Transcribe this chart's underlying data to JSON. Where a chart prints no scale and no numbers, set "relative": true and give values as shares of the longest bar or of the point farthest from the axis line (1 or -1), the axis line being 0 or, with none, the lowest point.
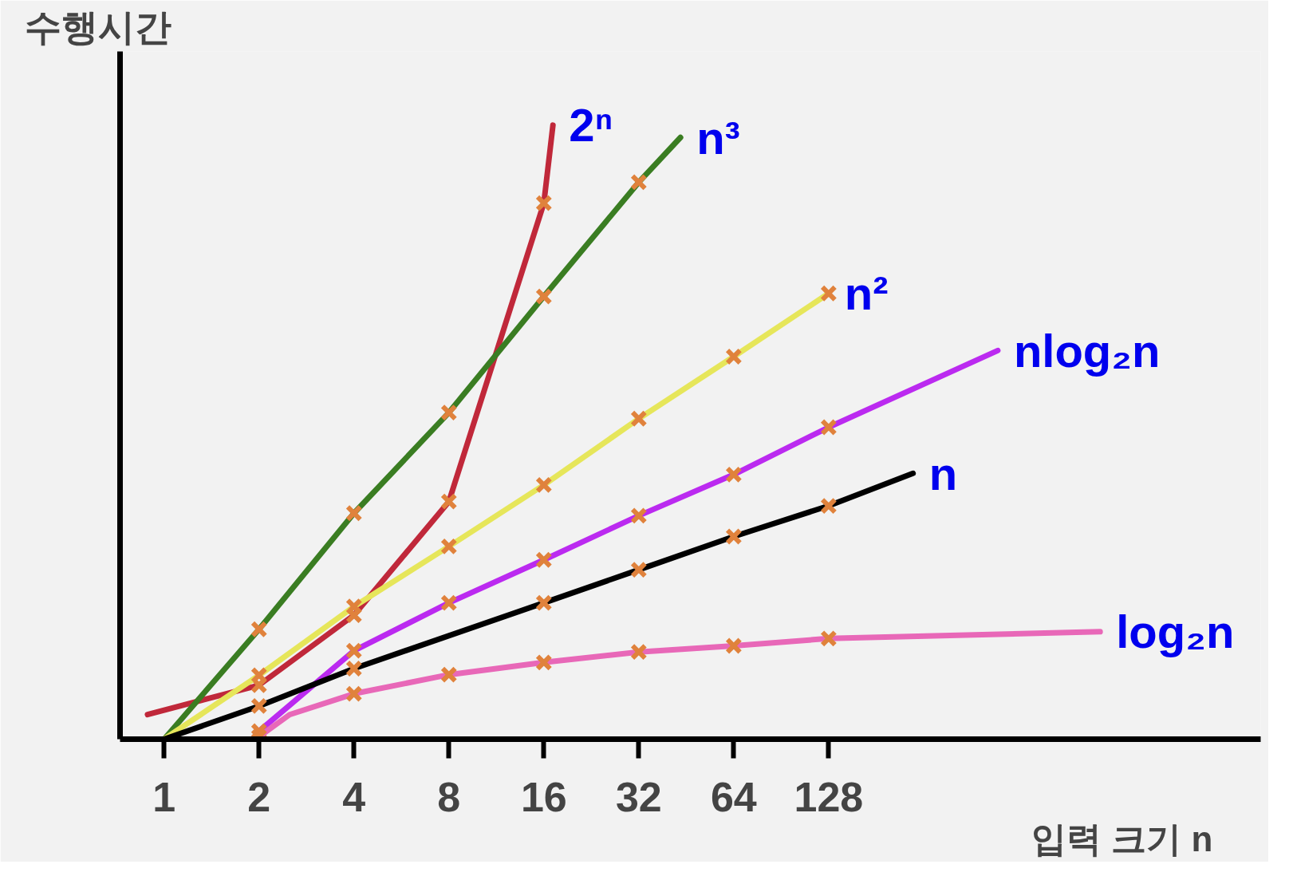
{
  "chart_data": {
    "type": "line",
    "relative": true,
    "log": "x",
    "xlim": [
      0.725,
      3000
    ],
    "xticks": [
      1,
      2,
      4,
      8,
      16,
      32,
      64,
      128
    ],
    "xlabel": "입력 크기 n",
    "ylabel": "수행시간",
    "grid": false,
    "legend": false,
    "marker": "cross",
    "line_style": "solid",
    "series": [
      {
        "name": "2ⁿ",
        "color": "#c0283a",
        "x": [
          0.886,
          2,
          4,
          8,
          16,
          17.1
        ],
        "values": [
          0.04,
          0.088,
          0.202,
          0.387,
          0.873,
          1.0
        ]
      },
      {
        "name": "n³",
        "color": "#3a7d22",
        "x": [
          1,
          2,
          4,
          8,
          16,
          32,
          43.4
        ],
        "values": [
          0,
          0.179,
          0.368,
          0.532,
          0.721,
          0.907,
          0.98
        ]
      },
      {
        "name": "n²",
        "color": "#e6e65a",
        "x": [
          1,
          2,
          4,
          8,
          16,
          32,
          64,
          128
        ],
        "values": [
          0,
          0.104,
          0.216,
          0.314,
          0.414,
          0.522,
          0.623,
          0.726
        ]
      },
      {
        "name": "nlog₂n",
        "color": "#bb2af0",
        "x": [
          2,
          4,
          8,
          16,
          32,
          64,
          128,
          440
        ],
        "values": [
          0.013,
          0.144,
          0.222,
          0.292,
          0.364,
          0.431,
          0.508,
          0.633
        ]
      },
      {
        "name": "n",
        "color": "#000000",
        "x": [
          1,
          2,
          4,
          16,
          32,
          64,
          128,
          237
        ],
        "values": [
          0,
          0.054,
          0.115,
          0.222,
          0.276,
          0.33,
          0.38,
          0.433
        ]
      },
      {
        "name": "log₂n",
        "color": "#e868b8",
        "x": [
          2,
          2.5,
          4,
          8,
          16,
          32,
          64,
          128,
          929
        ],
        "values": [
          0.004,
          0.04,
          0.074,
          0.105,
          0.125,
          0.142,
          0.152,
          0.164,
          0.175
        ]
      }
    ]
  }
}
